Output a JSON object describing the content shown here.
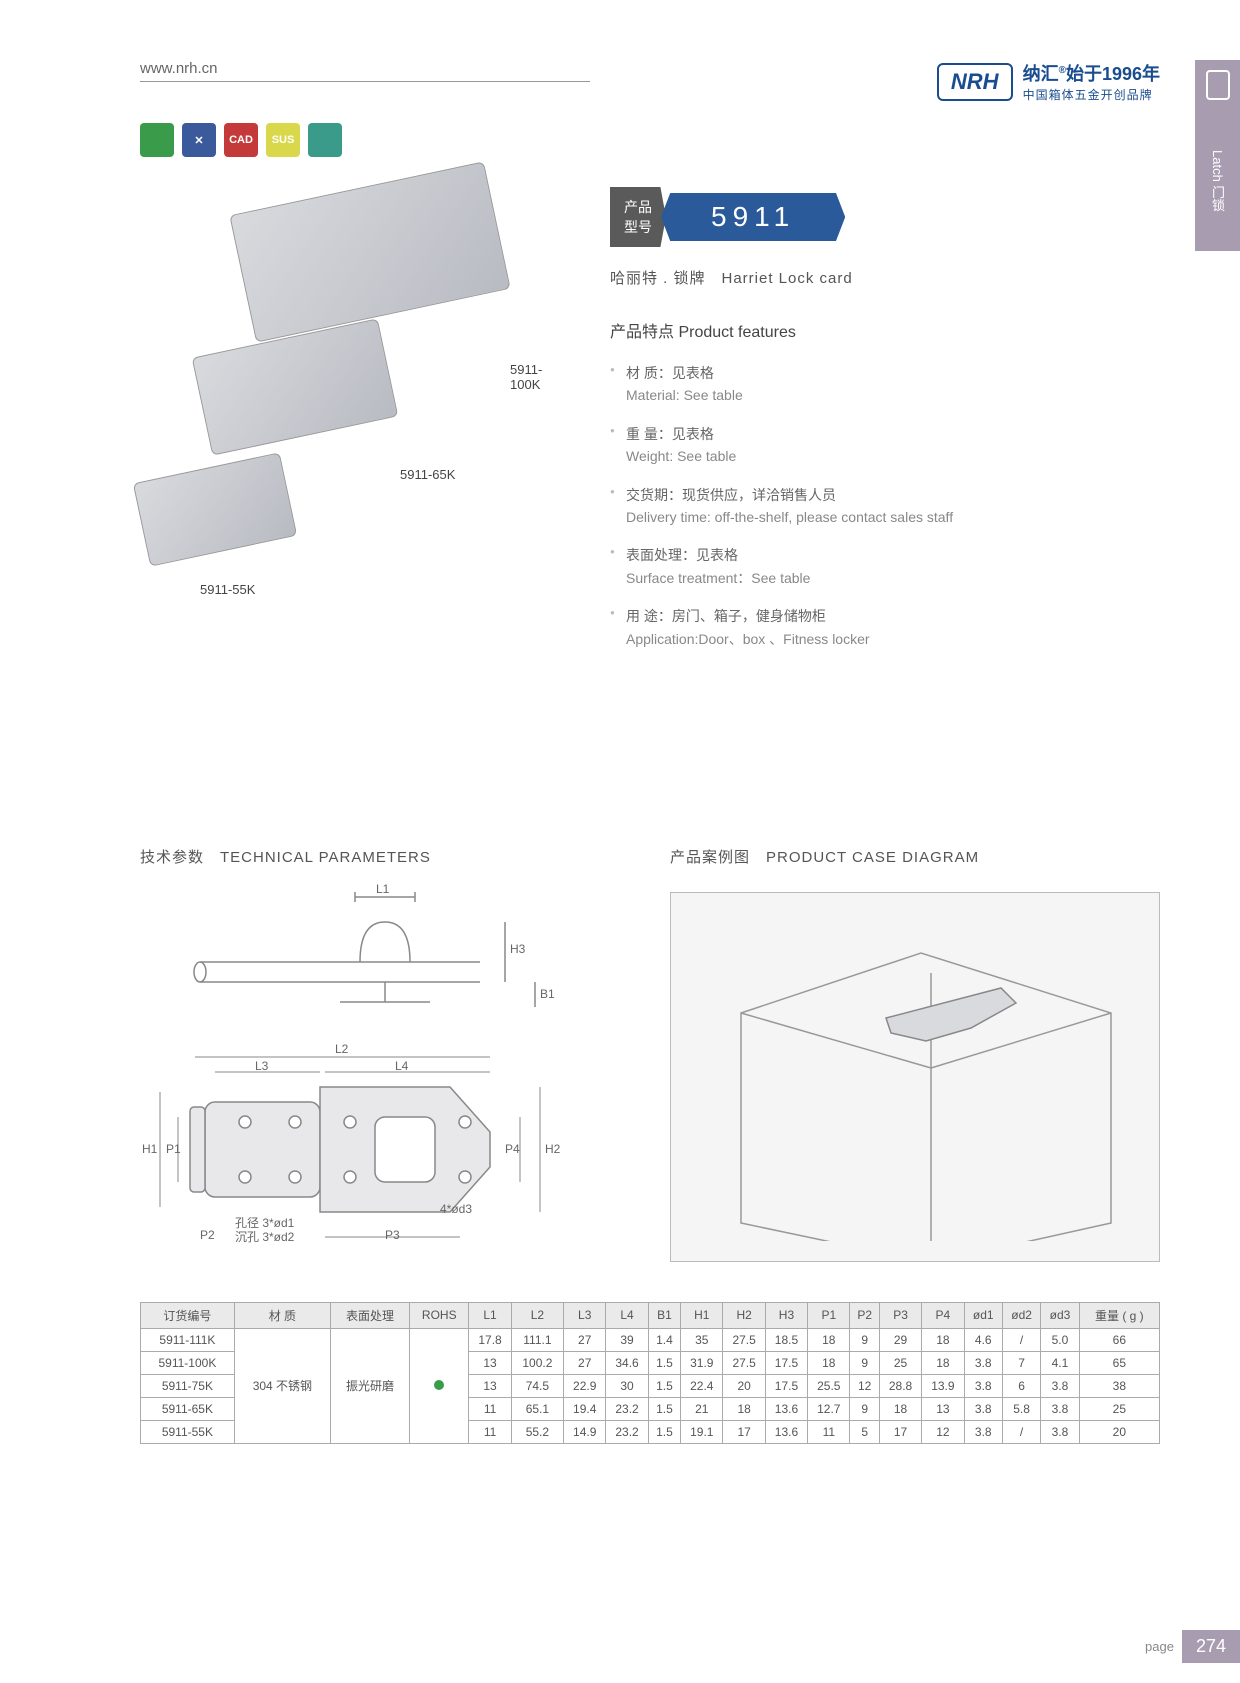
{
  "header": {
    "url": "www.nrh.cn",
    "brand_logo": "NRH",
    "brand_cn": "纳汇",
    "brand_year": "始于1996年",
    "brand_sub": "中国箱体五金开创品牌",
    "reg": "®"
  },
  "side_tab": {
    "en": "Latch",
    "cn": "门锁"
  },
  "icons": [
    {
      "bg": "#3a9b4a",
      "label": ""
    },
    {
      "bg": "#3a5a9b",
      "label": "✕"
    },
    {
      "bg": "#c43a3a",
      "label": "CAD"
    },
    {
      "bg": "#d8d84a",
      "label": "SUS"
    },
    {
      "bg": "#3a9b8a",
      "label": ""
    }
  ],
  "product_imgs": {
    "label1": "5911-100K",
    "label2": "5911-65K",
    "label3": "5911-55K"
  },
  "model": {
    "prefix_cn1": "产品",
    "prefix_cn2": "型号",
    "number": "5911"
  },
  "subtitle": "哈丽特 . 锁牌　Harriet Lock card",
  "features_title": "产品特点 Product features",
  "features": [
    {
      "cn": "材 质：见表格",
      "en": "Material: See table"
    },
    {
      "cn": "重 量：见表格",
      "en": "Weight: See table"
    },
    {
      "cn": "交货期：现货供应，详洽销售人员",
      "en": "Delivery time: off-the-shelf, please contact sales staff"
    },
    {
      "cn": "表面处理：见表格",
      "en": "Surface treatment：See table"
    },
    {
      "cn": "用 途：房门、箱子，健身储物柜",
      "en": "Application:Door、box 、Fitness locker"
    }
  ],
  "tech_title": "技术参数　TECHNICAL PARAMETERS",
  "case_title": "产品案例图　PRODUCT CASE DIAGRAM",
  "dims": {
    "L1": "L1",
    "L2": "L2",
    "L3": "L3",
    "L4": "L4",
    "H1": "H1",
    "H2": "H2",
    "H3": "H3",
    "B1": "B1",
    "P1": "P1",
    "P2": "P2",
    "P3": "P3",
    "P4": "P4",
    "hole1": "孔径 3*ød1",
    "hole2": "沉孔 3*ød2",
    "hole3": "4*ød3"
  },
  "table": {
    "headers": [
      "订货编号",
      "材 质",
      "表面处理",
      "ROHS",
      "L1",
      "L2",
      "L3",
      "L4",
      "B1",
      "H1",
      "H2",
      "H3",
      "P1",
      "P2",
      "P3",
      "P4",
      "ød1",
      "ød2",
      "ød3",
      "重量 ( g )"
    ],
    "material": "304 不锈钢",
    "surface": "振光研磨",
    "rows": [
      [
        "5911-111K",
        "17.8",
        "111.1",
        "27",
        "39",
        "1.4",
        "35",
        "27.5",
        "18.5",
        "18",
        "9",
        "29",
        "18",
        "4.6",
        "/",
        "5.0",
        "66"
      ],
      [
        "5911-100K",
        "13",
        "100.2",
        "27",
        "34.6",
        "1.5",
        "31.9",
        "27.5",
        "17.5",
        "18",
        "9",
        "25",
        "18",
        "3.8",
        "7",
        "4.1",
        "65"
      ],
      [
        "5911-75K",
        "13",
        "74.5",
        "22.9",
        "30",
        "1.5",
        "22.4",
        "20",
        "17.5",
        "25.5",
        "12",
        "28.8",
        "13.9",
        "3.8",
        "6",
        "3.8",
        "38"
      ],
      [
        "5911-65K",
        "11",
        "65.1",
        "19.4",
        "23.2",
        "1.5",
        "21",
        "18",
        "13.6",
        "12.7",
        "9",
        "18",
        "13",
        "3.8",
        "5.8",
        "3.8",
        "25"
      ],
      [
        "5911-55K",
        "11",
        "55.2",
        "14.9",
        "23.2",
        "1.5",
        "19.1",
        "17",
        "13.6",
        "11",
        "5",
        "17",
        "12",
        "3.8",
        "/",
        "3.8",
        "20"
      ]
    ]
  },
  "footer": {
    "label": "page",
    "num": "274"
  }
}
